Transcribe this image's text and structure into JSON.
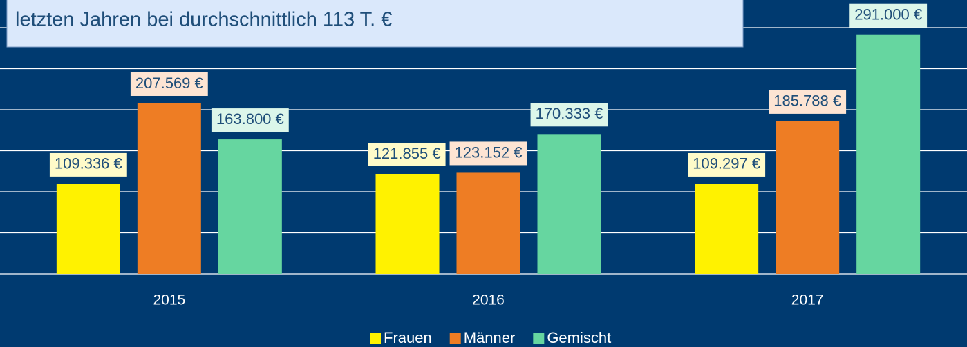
{
  "chart_data": {
    "type": "bar",
    "annotation": "letzten Jahren bei durchschnittlich 113 T. €",
    "categories": [
      "2015",
      "2016",
      "2017"
    ],
    "series": [
      {
        "name": "Frauen",
        "color": "#fff200",
        "label_bg": "#fffbc9",
        "values": [
          109336,
          121855,
          109297
        ],
        "value_labels": [
          "109.336 €",
          "121.855 €",
          "109.297 €"
        ]
      },
      {
        "name": "Männer",
        "color": "#ee7d24",
        "label_bg": "#fde4d3",
        "values": [
          207569,
          123152,
          185788
        ],
        "value_labels": [
          "207.569 €",
          "123.152 €",
          "185.788 €"
        ]
      },
      {
        "name": "Gemischt",
        "color": "#66d6a0",
        "label_bg": "#dcf6ea",
        "values": [
          163800,
          170333,
          291000
        ],
        "value_labels": [
          "163.800 €",
          "170.333 €",
          "291.000 €"
        ]
      }
    ],
    "ylim": [
      0,
      300000
    ],
    "yticks": [
      0,
      50000,
      100000,
      150000,
      200000,
      250000,
      300000
    ],
    "grid": true,
    "legend": "bottom"
  }
}
